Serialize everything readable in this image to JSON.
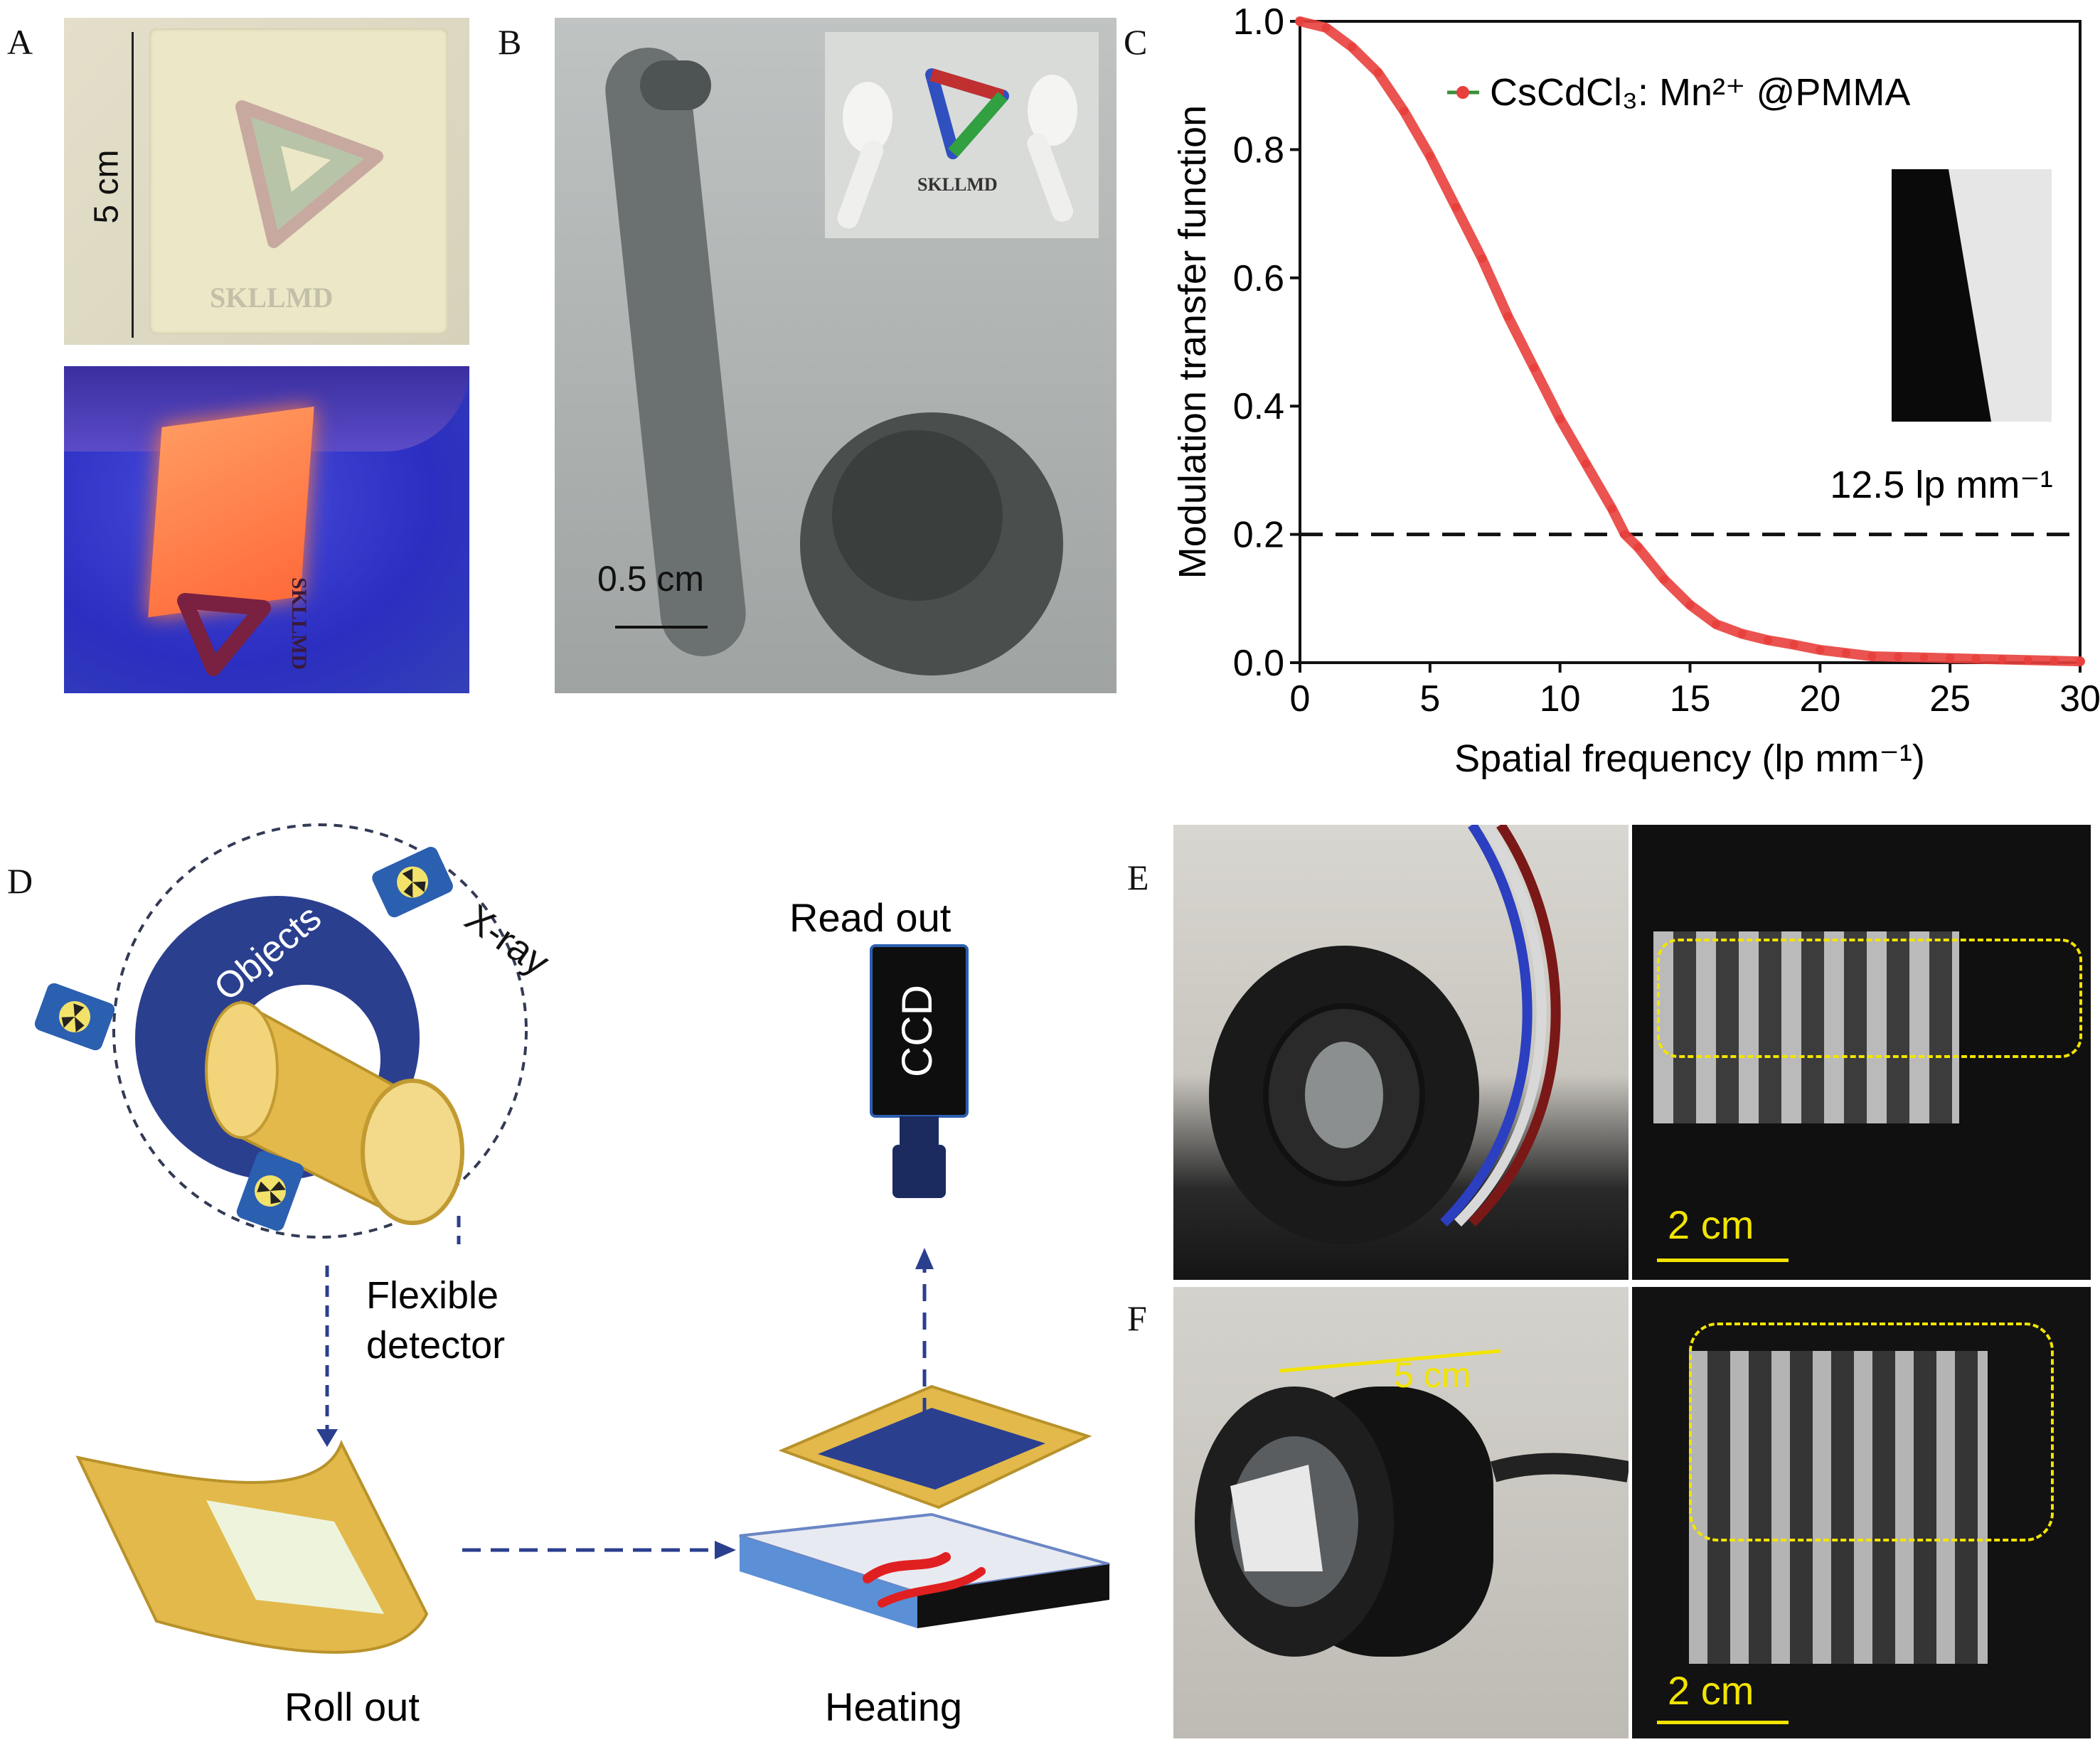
{
  "panels": {
    "a": {
      "letter": "A",
      "scale_label": "5 cm",
      "logo_text": "SKLLMD",
      "logo_text_uv": "SKLLMD"
    },
    "b": {
      "letter": "B",
      "scale_label": "0.5 cm",
      "inset_logo_text": "SKLLMD"
    },
    "c": {
      "letter": "C",
      "inset_label": "12.5 lp mm⁻¹"
    },
    "d": {
      "letter": "D",
      "objects_label": "Objects",
      "xray_label": "X-ray",
      "flexible_label_1": "Flexible",
      "flexible_label_2": "detector",
      "readout_label": "Read out",
      "ccd_label": "CCD",
      "rollout_label": "Roll out",
      "heating_label": "Heating"
    },
    "e": {
      "letter": "E",
      "scale_label": "2 cm"
    },
    "f": {
      "letter": "F",
      "scale_label": "2 cm",
      "dimension_label": "5 cm"
    }
  },
  "colors": {
    "curve": "#e8403c",
    "detector_gold": "#e2b94a",
    "diagram_blue": "#2b3f8f",
    "scale_yellow": "#f2e400"
  },
  "chart_data": {
    "type": "line",
    "title": "",
    "xlabel": "Spatial frequency (lp mm⁻¹)",
    "ylabel": "Modulation transfer function",
    "xlim": [
      0,
      30
    ],
    "ylim": [
      0,
      1.0
    ],
    "x_ticks": [
      "0",
      "5",
      "10",
      "15",
      "20",
      "25",
      "30"
    ],
    "y_ticks": [
      "0.0",
      "0.2",
      "0.4",
      "0.6",
      "0.8",
      "1.0"
    ],
    "reference_line": {
      "y": 0.2,
      "style": "dashed"
    },
    "legend_position": "top-right",
    "grid": false,
    "series": [
      {
        "name": "CsCdCl₃: Mn²⁺ @PMMA",
        "x": [
          0,
          1,
          2,
          3,
          4,
          5,
          6,
          7,
          8,
          9,
          10,
          11,
          12,
          12.5,
          13,
          14,
          15,
          16,
          17,
          18,
          19,
          20,
          21,
          22,
          23,
          24,
          25,
          26,
          27,
          28,
          29,
          30
        ],
        "y": [
          1.0,
          0.99,
          0.96,
          0.92,
          0.86,
          0.79,
          0.71,
          0.63,
          0.54,
          0.46,
          0.38,
          0.31,
          0.24,
          0.2,
          0.18,
          0.13,
          0.09,
          0.06,
          0.045,
          0.035,
          0.028,
          0.02,
          0.015,
          0.01,
          0.009,
          0.008,
          0.007,
          0.006,
          0.005,
          0.004,
          0.003,
          0.002
        ]
      }
    ]
  }
}
